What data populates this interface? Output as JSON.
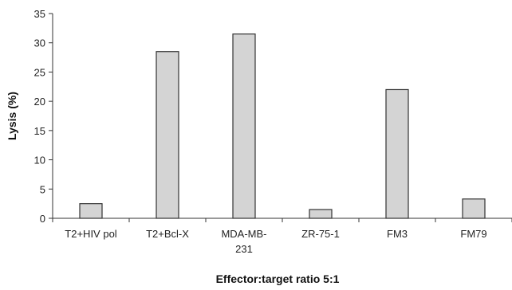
{
  "chart_data": {
    "type": "bar",
    "categories": [
      "T2+HIV pol",
      "T2+Bcl-X",
      "MDA-MB-231",
      "ZR-75-1",
      "FM3",
      "FM79"
    ],
    "values": [
      2.5,
      28.5,
      31.5,
      1.5,
      22.0,
      3.3
    ],
    "xlabel": "Effector:target ratio 5:1",
    "ylabel": "Lysis (%)",
    "ylim": [
      0,
      35
    ],
    "yticks": [
      0,
      5,
      10,
      15,
      20,
      25,
      30,
      35
    ],
    "grid": false,
    "legend": "none",
    "colors": {
      "bar_fill": "#d4d4d4",
      "bar_stroke": "#333333",
      "axis": "#333333"
    }
  }
}
